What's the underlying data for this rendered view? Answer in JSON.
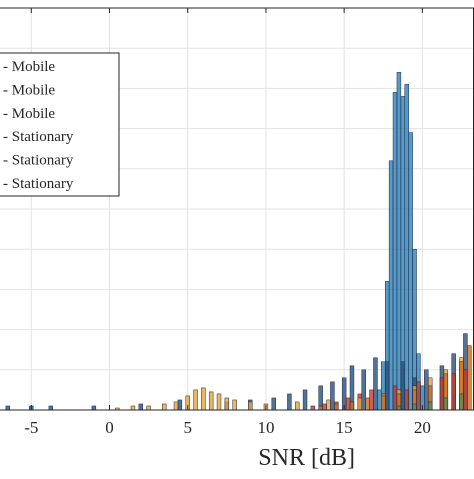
{
  "chart_data": {
    "type": "histogram",
    "xlabel": "SNR [dB]",
    "ylabel": "",
    "xlim": [
      -7,
      23.3
    ],
    "ylim": [
      0,
      1
    ],
    "xticks": [
      -5,
      0,
      5,
      10,
      15,
      20
    ],
    "xtick_labels": [
      "-5",
      "0",
      "5",
      "10",
      "15",
      "20"
    ],
    "yticks": [
      0.1,
      0.2,
      0.3,
      0.4,
      0.5,
      0.6,
      0.7,
      0.8,
      0.9
    ],
    "grid": true,
    "legend": {
      "placement": "upper-left",
      "entries": [
        " - Mobile",
        " - Mobile",
        " - Mobile",
        " - Stationary",
        " - Stationary",
        " - Stationary"
      ]
    },
    "series": [
      {
        "name": " - Mobile",
        "color": "#1f77b4",
        "x": [
          17.25,
          17.5,
          17.75,
          18.0,
          18.25,
          18.5,
          18.75,
          19.0,
          19.25,
          19.5,
          19.75,
          20.0
        ],
        "values": [
          0.05,
          0.12,
          0.32,
          0.62,
          0.79,
          0.84,
          0.78,
          0.81,
          0.69,
          0.4,
          0.14,
          0.06
        ]
      },
      {
        "name": " - Mobile",
        "color": "#2b4f7a",
        "x": [
          -6.5,
          -5.0,
          -3.75,
          -1.0,
          2.0,
          4.5,
          7.5,
          9.0,
          10.5,
          11.5,
          12.5,
          13.5,
          14.25,
          15.0,
          15.5,
          16.25,
          17.0,
          17.75,
          18.75,
          19.5,
          20.25,
          21.25,
          22.0,
          22.75
        ],
        "values": [
          0.01,
          0.01,
          0.01,
          0.01,
          0.015,
          0.025,
          0.02,
          0.025,
          0.03,
          0.04,
          0.05,
          0.06,
          0.07,
          0.08,
          0.11,
          0.1,
          0.13,
          0.12,
          0.12,
          0.08,
          0.1,
          0.11,
          0.14,
          0.19
        ]
      },
      {
        "name": " - Mobile",
        "color": "#c0392b",
        "x": [
          13.0,
          13.75,
          14.5,
          15.25,
          16.0,
          16.75,
          17.5,
          18.25,
          19.0,
          19.75,
          20.5,
          21.25,
          22.0,
          22.75
        ],
        "values": [
          0.01,
          0.015,
          0.02,
          0.03,
          0.04,
          0.05,
          0.04,
          0.06,
          0.05,
          0.07,
          0.06,
          0.08,
          0.09,
          0.1
        ]
      },
      {
        "name": " - Stationary",
        "color": "#e8a33b",
        "x": [
          0.5,
          1.5,
          2.5,
          3.5,
          4.25,
          5.0,
          5.5,
          6.0,
          6.5,
          7.0,
          7.5,
          8.0,
          9.0,
          10.0,
          12.0,
          14.0,
          16.0,
          17.5,
          18.5,
          19.5,
          20.5,
          21.5,
          22.5
        ],
        "values": [
          0.005,
          0.01,
          0.01,
          0.015,
          0.02,
          0.035,
          0.05,
          0.055,
          0.045,
          0.04,
          0.03,
          0.025,
          0.02,
          0.015,
          0.02,
          0.025,
          0.03,
          0.04,
          0.05,
          0.06,
          0.08,
          0.1,
          0.13
        ]
      },
      {
        "name": " - Stationary",
        "color": "#cc6d1a",
        "x": [
          13.5,
          14.5,
          15.5,
          16.5,
          17.5,
          18.5,
          19.5,
          20.5,
          21.5,
          22.5,
          23.0
        ],
        "values": [
          0.01,
          0.015,
          0.02,
          0.03,
          0.035,
          0.04,
          0.05,
          0.06,
          0.09,
          0.12,
          0.16
        ]
      },
      {
        "name": " - Stationary",
        "color": "#5d8a4a",
        "x": [
          18.5,
          19.5,
          20.5,
          21.5,
          22.5
        ],
        "values": [
          0.01,
          0.015,
          0.02,
          0.03,
          0.04
        ]
      }
    ]
  }
}
